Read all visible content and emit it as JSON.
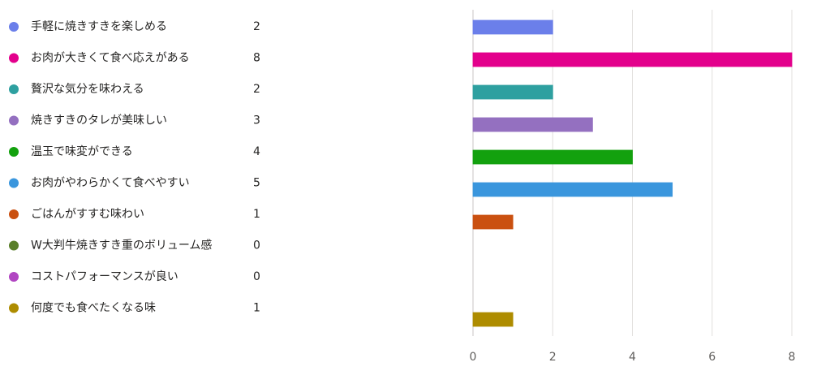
{
  "chart_data": {
    "type": "bar",
    "orientation": "horizontal",
    "categories": [
      "手軽に焼きすきを楽しめる",
      "お肉が大きくて食べ応えがある",
      "贅沢な気分を味わえる",
      "焼きすきのタレが美味しい",
      "温玉で味変ができる",
      "お肉がやわらかくて食べやすい",
      "ごはんがすすむ味わい",
      "W大判牛焼きすき重のボリューム感",
      "コストパフォーマンスが良い",
      "何度でも食べたくなる味"
    ],
    "values": [
      2,
      8,
      2,
      3,
      4,
      5,
      1,
      0,
      0,
      1
    ],
    "colors": [
      "#6b7fea",
      "#e3008c",
      "#2ea0a0",
      "#9470c0",
      "#13a10e",
      "#3a96dd",
      "#ca5010",
      "#5a7f2a",
      "#b146c2",
      "#ae8c00"
    ],
    "xlim": [
      0,
      8
    ],
    "xticks": [
      0,
      2,
      4,
      6,
      8
    ],
    "grid": true
  }
}
